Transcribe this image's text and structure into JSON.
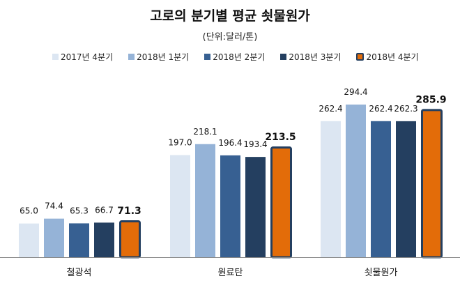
{
  "chart_data": {
    "type": "bar",
    "title": "고로의 분기별 평균 쇳물원가",
    "subtitle": "(단위:달러/톤)",
    "categories": [
      "철광석",
      "원료탄",
      "쇳물원가"
    ],
    "series": [
      {
        "name": "2017년 4분기",
        "values": [
          65.0,
          197.0,
          262.4
        ],
        "color": "#dce6f2"
      },
      {
        "name": "2018년 1분기",
        "values": [
          74.4,
          218.1,
          294.4
        ],
        "color": "#95b3d7"
      },
      {
        "name": "2018년 2분기",
        "values": [
          65.3,
          196.4,
          262.4
        ],
        "color": "#376092"
      },
      {
        "name": "2018년 3분기",
        "values": [
          66.7,
          193.4,
          262.3
        ],
        "color": "#243f60"
      },
      {
        "name": "2018년 4분기",
        "values": [
          71.3,
          213.5,
          285.9
        ],
        "color": "#e36c09",
        "border": "#243f60",
        "highlight": true
      }
    ],
    "ylim": [
      0,
      300
    ],
    "grid": false,
    "legend": "top"
  }
}
